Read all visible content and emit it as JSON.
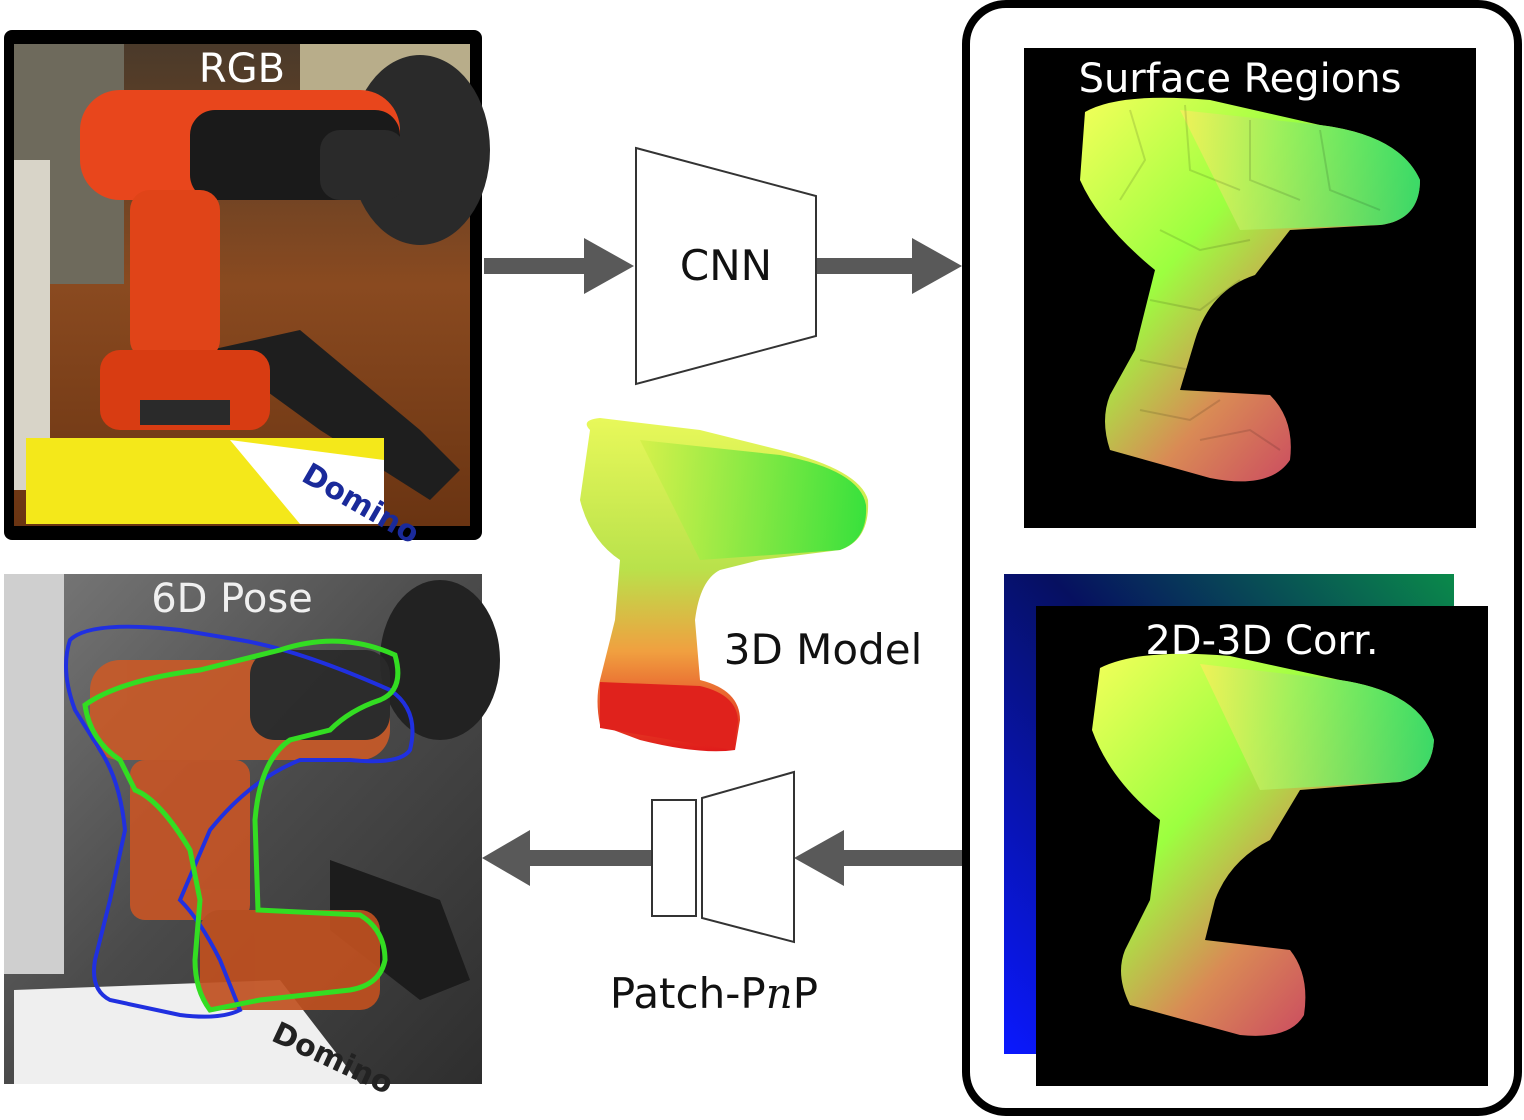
{
  "labels": {
    "rgb": "RGB",
    "pose": "6D Pose",
    "cnn": "CNN",
    "model": "3D Model",
    "patch_pnp_prefix": "Patch-P",
    "patch_pnp_n": "n",
    "patch_pnp_suffix": "P",
    "surface_regions": "Surface Regions",
    "corr": "2D-3D Corr."
  },
  "colors": {
    "arrow": "#595959",
    "pose_gt_contour": "#2030e0",
    "pose_pred_contour": "#33dd22",
    "drill_orange": "#e8461c",
    "panel_border": "#000000"
  },
  "icons": {
    "cnn": "trapezoid-encoder",
    "patch_pnp": "rect-plus-trapezoid"
  }
}
